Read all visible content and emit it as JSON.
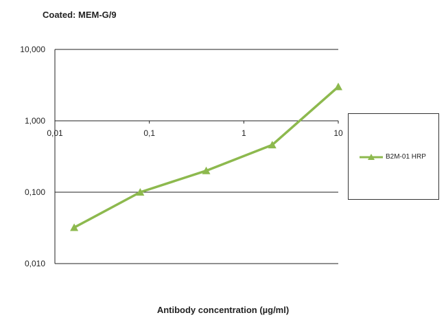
{
  "chart_data": {
    "type": "line",
    "title": "Coated: MEM-G/9",
    "xlabel": "Antibody concentration  (µg/ml)",
    "ylabel": "",
    "x_scale": "log",
    "y_scale": "log",
    "xlim": [
      0.01,
      10
    ],
    "ylim": [
      0.01,
      10
    ],
    "x_ticks": [
      {
        "value": 0.01,
        "label": "0,01"
      },
      {
        "value": 0.1,
        "label": "0,1"
      },
      {
        "value": 1,
        "label": "1"
      },
      {
        "value": 10,
        "label": "10"
      }
    ],
    "y_ticks": [
      {
        "value": 10,
        "label": "10,000"
      },
      {
        "value": 1,
        "label": "1,000"
      },
      {
        "value": 0.1,
        "label": "0,100"
      },
      {
        "value": 0.01,
        "label": "0,010"
      }
    ],
    "grid": "horizontal",
    "legend_position": "right",
    "series": [
      {
        "name": "B2M-01 HRP",
        "color": "#8db94e",
        "marker": "triangle",
        "x": [
          0.016,
          0.08,
          0.4,
          2,
          10
        ],
        "y": [
          0.032,
          0.1,
          0.2,
          0.46,
          3.0
        ]
      }
    ]
  }
}
